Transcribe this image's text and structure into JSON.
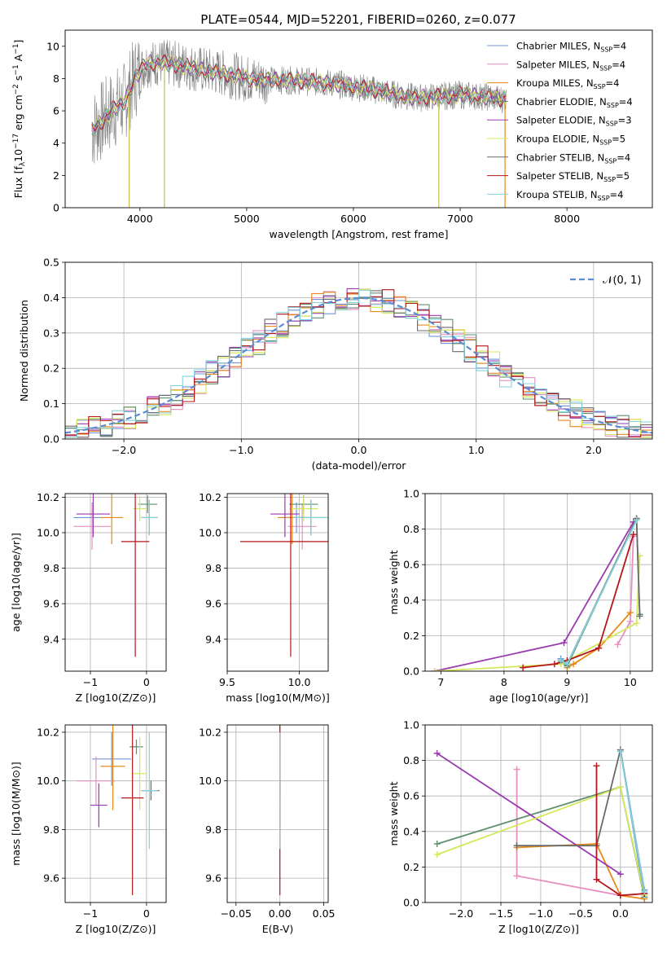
{
  "title": "PLATE=0544, MJD=52201, FIBERID=0260, z=0.077",
  "colors": {
    "series": [
      "#6f95d6",
      "#e68fc1",
      "#e8891a",
      "#5e8f6d",
      "#9a3ab0",
      "#d4e85a",
      "#6b6b6b",
      "#b5161a",
      "#82d2dd"
    ],
    "data": "#7f7f7f",
    "normal": "#5b8bd3",
    "grid": "#b0b0b0"
  },
  "legend_labels": [
    {
      "base": "Chabrier MILES, N",
      "sub": "SSP",
      "tail": "=4"
    },
    {
      "base": "Salpeter MILES, N",
      "sub": "SSP",
      "tail": "=4"
    },
    {
      "base": "Kroupa MILES, N",
      "sub": "SSP",
      "tail": "=4"
    },
    {
      "base": "Chabrier ELODIE, N",
      "sub": "SSP",
      "tail": "=4"
    },
    {
      "base": "Salpeter ELODIE, N",
      "sub": "SSP",
      "tail": "=3"
    },
    {
      "base": "Kroupa ELODIE, N",
      "sub": "SSP",
      "tail": "=5"
    },
    {
      "base": "Chabrier STELIB, N",
      "sub": "SSP",
      "tail": "=4"
    },
    {
      "base": "Salpeter STELIB, N",
      "sub": "SSP",
      "tail": "=5"
    },
    {
      "base": "Kroupa STELIB, N",
      "sub": "SSP",
      "tail": "=4"
    }
  ],
  "normal_label": "𝒩(0, 1)",
  "chart_data": [
    {
      "id": "spectrum",
      "type": "line",
      "xlabel": "wavelength [Angstrom, rest frame]",
      "ylabel": "Flux [f_λ 10^-17 erg cm^-2 s^-1 A^-1]",
      "xlim": [
        3300,
        8800
      ],
      "ylim": [
        0,
        11
      ],
      "grid": false,
      "legend": "top-right",
      "xticks": [
        4000,
        5000,
        6000,
        7000,
        8000
      ],
      "yticks": [
        0,
        2,
        4,
        6,
        8,
        10
      ],
      "data_range": [
        3550,
        7430
      ],
      "continuum_points": [
        [
          3550,
          4.8
        ],
        [
          3650,
          5.4
        ],
        [
          3750,
          6.1
        ],
        [
          3850,
          6.5
        ],
        [
          3950,
          8.0
        ],
        [
          4050,
          8.9
        ],
        [
          4200,
          9.0
        ],
        [
          4400,
          8.8
        ],
        [
          4600,
          8.5
        ],
        [
          4800,
          8.3
        ],
        [
          5000,
          8.0
        ],
        [
          5200,
          7.9
        ],
        [
          5400,
          7.9
        ],
        [
          5600,
          7.8
        ],
        [
          5800,
          7.7
        ],
        [
          6000,
          7.5
        ],
        [
          6200,
          7.3
        ],
        [
          6400,
          7.0
        ],
        [
          6600,
          6.8
        ],
        [
          6800,
          6.9
        ],
        [
          7000,
          7.0
        ],
        [
          7200,
          6.9
        ],
        [
          7430,
          6.7
        ]
      ]
    },
    {
      "id": "residuals",
      "type": "bar",
      "xlabel": "(data-model)/error",
      "ylabel": "Normed distribution",
      "xlim": [
        -2.5,
        2.5
      ],
      "ylim": [
        0,
        0.5
      ],
      "grid": true,
      "legend": "top-right",
      "xticks": [
        -2,
        -1,
        0,
        1,
        2
      ],
      "yticks": [
        0.0,
        0.1,
        0.2,
        0.3,
        0.4,
        0.5
      ],
      "bin_width": 0.1,
      "bin_start": -2.5,
      "spread": [
        0.0,
        0.02,
        -0.015,
        0.03,
        -0.01,
        0.025,
        -0.03,
        0.015,
        -0.02
      ]
    },
    {
      "id": "age_vs_Z",
      "type": "scatter",
      "xlabel": "Z [log10(Z/Z⊙)]",
      "ylabel": "age [log10(age/yr)]",
      "xlim": [
        -1.45,
        0.35
      ],
      "ylim": [
        9.22,
        10.22
      ],
      "grid": true,
      "xticks": [
        -1,
        0
      ],
      "yticks": [
        9.4,
        9.6,
        9.8,
        10.0,
        10.2
      ],
      "points": [
        {
          "x": -0.97,
          "xerr": 0.33,
          "y": 10.085,
          "yerr": 0.085
        },
        {
          "x": -0.97,
          "xerr": 0.33,
          "y": 10.035,
          "yerr": 0.13
        },
        {
          "x": -0.62,
          "xerr": 0.2,
          "y": 10.085,
          "yerr": 0.15
        },
        {
          "x": 0.02,
          "xerr": 0.17,
          "y": 10.16,
          "yerr": 0.05
        },
        {
          "x": -0.95,
          "xerr": 0.3,
          "y": 10.105,
          "yerr": 0.13
        },
        {
          "x": -0.12,
          "xerr": 0.12,
          "y": 10.135,
          "yerr": 0.07
        },
        {
          "x": 0.05,
          "xerr": 0.15,
          "y": 10.085,
          "yerr": 0.1
        },
        {
          "x": -0.2,
          "xerr": 0.25,
          "y": 9.95,
          "yerr": 0.65
        },
        {
          "x": 0.05,
          "xerr": 0.15,
          "y": 10.085,
          "yerr": 0.1
        }
      ]
    },
    {
      "id": "age_vs_mass",
      "type": "scatter",
      "xlabel": "mass [log10(M/M⊙)]",
      "ylabel": "",
      "xlim": [
        9.5,
        10.2
      ],
      "ylim": [
        9.22,
        10.22
      ],
      "grid": true,
      "xticks": [
        9.5,
        10.0
      ],
      "yticks": [
        9.4,
        9.6,
        9.8,
        10.0,
        10.2
      ],
      "points": [
        {
          "x": 9.98,
          "xerr": 0.1,
          "y": 10.085,
          "yerr": 0.085
        },
        {
          "x": 10.02,
          "xerr": 0.1,
          "y": 10.035,
          "yerr": 0.13
        },
        {
          "x": 9.95,
          "xerr": 0.1,
          "y": 10.085,
          "yerr": 0.15
        },
        {
          "x": 10.03,
          "xerr": 0.1,
          "y": 10.16,
          "yerr": 0.05
        },
        {
          "x": 9.9,
          "xerr": 0.1,
          "y": 10.105,
          "yerr": 0.13
        },
        {
          "x": 10.03,
          "xerr": 0.1,
          "y": 10.135,
          "yerr": 0.07
        },
        {
          "x": 10.08,
          "xerr": 0.12,
          "y": 10.085,
          "yerr": 0.1
        },
        {
          "x": 9.94,
          "xerr": 0.35,
          "y": 9.95,
          "yerr": 0.65
        },
        {
          "x": 10.08,
          "xerr": 0.12,
          "y": 10.085,
          "yerr": 0.1
        }
      ]
    },
    {
      "id": "weight_vs_age",
      "type": "line",
      "xlabel": "age [log10(age/yr)]",
      "ylabel": "mass weight",
      "xlim": [
        6.75,
        10.35
      ],
      "ylim": [
        0,
        1
      ],
      "grid": true,
      "xticks": [
        7,
        8,
        9,
        10
      ],
      "yticks": [
        0.0,
        0.2,
        0.4,
        0.6,
        0.8,
        1.0
      ],
      "series": [
        {
          "x": [
            8.9,
            9.0,
            10.1
          ],
          "y": [
            0.07,
            0.03,
            0.86
          ]
        },
        {
          "x": [
            9.8,
            10.0,
            10.05
          ],
          "y": [
            0.15,
            0.28,
            0.76
          ]
        },
        {
          "x": [
            9.0,
            9.1,
            9.5,
            10.0
          ],
          "y": [
            0.02,
            0.04,
            0.13,
            0.33
          ]
        },
        {
          "x": [
            8.9,
            9.0,
            10.1,
            10.15
          ],
          "y": [
            0.05,
            0.03,
            0.86,
            0.32
          ]
        },
        {
          "x": [
            6.9,
            8.95,
            10.05
          ],
          "y": [
            0.0,
            0.16,
            0.84
          ]
        },
        {
          "x": [
            6.9,
            8.9,
            10.1,
            10.15
          ],
          "y": [
            0.0,
            0.04,
            0.27,
            0.65
          ]
        },
        {
          "x": [
            8.9,
            9.0,
            10.1,
            10.15
          ],
          "y": [
            0.06,
            0.04,
            0.86,
            0.31
          ]
        },
        {
          "x": [
            8.3,
            8.8,
            9.0,
            9.5,
            10.05
          ],
          "y": [
            0.02,
            0.04,
            0.06,
            0.13,
            0.77
          ]
        },
        {
          "x": [
            8.9,
            9.0,
            10.1
          ],
          "y": [
            0.06,
            0.04,
            0.85
          ]
        }
      ]
    },
    {
      "id": "mass_vs_Z",
      "type": "scatter",
      "xlabel": "Z [log10(Z/Z⊙)]",
      "ylabel": "mass [log10(M/M⊙)]",
      "xlim": [
        -1.45,
        0.35
      ],
      "ylim": [
        9.5,
        10.23
      ],
      "grid": true,
      "xticks": [
        -1,
        0
      ],
      "yticks": [
        9.6,
        9.8,
        10.0,
        10.2
      ],
      "points": [
        {
          "x": -0.62,
          "xerr": 0.35,
          "y": 10.09,
          "yerr": 0.11
        },
        {
          "x": -0.9,
          "xerr": 0.35,
          "y": 10.0,
          "yerr": 0.1
        },
        {
          "x": -0.6,
          "xerr": 0.22,
          "y": 10.06,
          "yerr": 0.18
        },
        {
          "x": -0.18,
          "xerr": 0.12,
          "y": 10.14,
          "yerr": 0.03
        },
        {
          "x": -0.85,
          "xerr": 0.15,
          "y": 9.9,
          "yerr": 0.09
        },
        {
          "x": -0.12,
          "xerr": 0.12,
          "y": 10.03,
          "yerr": 0.15
        },
        {
          "x": 0.08,
          "xerr": 0.15,
          "y": 9.96,
          "yerr": 0.04
        },
        {
          "x": -0.25,
          "xerr": 0.2,
          "y": 9.93,
          "yerr": 0.4
        },
        {
          "x": 0.05,
          "xerr": 0.15,
          "y": 9.96,
          "yerr": 0.24
        }
      ]
    },
    {
      "id": "mass_vs_EBV",
      "type": "scatter",
      "xlabel": "E(B-V)",
      "ylabel": "",
      "xlim": [
        -0.06,
        0.055
      ],
      "ylim": [
        9.5,
        10.23
      ],
      "grid": true,
      "xticks": [
        -0.05,
        0.0,
        0.05
      ],
      "yticks": [
        9.6,
        9.8,
        10.0,
        10.2
      ],
      "points": [
        {
          "x": 0.0,
          "xerr": 0.0,
          "y": 10.09,
          "yerr": 0.11
        },
        {
          "x": 0.0,
          "xerr": 0.0,
          "y": 10.0,
          "yerr": 0.1
        },
        {
          "x": 0.0,
          "xerr": 0.0,
          "y": 10.06,
          "yerr": 0.18
        },
        {
          "x": 0.0,
          "xerr": 0.0,
          "y": 10.14,
          "yerr": 0.03
        },
        {
          "x": 0.0,
          "xerr": 0.0,
          "y": 9.9,
          "yerr": 0.09
        },
        {
          "x": 0.0,
          "xerr": 0.0,
          "y": 10.03,
          "yerr": 0.15
        },
        {
          "x": 0.0,
          "xerr": 0.0,
          "y": 9.96,
          "yerr": 0.04
        },
        {
          "x": 0.0,
          "xerr": 0.0,
          "y": 9.93,
          "yerr": 0.4
        },
        {
          "x": 0.0,
          "xerr": 0.0,
          "y": 9.96,
          "yerr": 0.24
        }
      ]
    },
    {
      "id": "weight_vs_Z",
      "type": "line",
      "xlabel": "Z [log10(Z/Z⊙)]",
      "ylabel": "mass weight",
      "xlim": [
        -2.45,
        0.4
      ],
      "ylim": [
        0,
        1
      ],
      "grid": true,
      "xticks": [
        -2.0,
        -1.5,
        -1.0,
        -0.5,
        0.0
      ],
      "yticks": [
        0.0,
        0.2,
        0.4,
        0.6,
        0.8,
        1.0
      ],
      "series": [
        {
          "x": [
            0.3,
            0.0,
            0.3
          ],
          "y": [
            0.07,
            0.86,
            0.03
          ]
        },
        {
          "x": [
            -1.3,
            -1.3,
            0.0,
            0.3
          ],
          "y": [
            0.75,
            0.15,
            0.04,
            0.05
          ]
        },
        {
          "x": [
            -1.3,
            -0.3,
            0.0,
            0.3
          ],
          "y": [
            0.31,
            0.33,
            0.04,
            0.02
          ]
        },
        {
          "x": [
            -2.3,
            0.0,
            0.3
          ],
          "y": [
            0.33,
            0.65,
            0.03
          ]
        },
        {
          "x": [
            -2.3,
            0.0
          ],
          "y": [
            0.84,
            0.16
          ]
        },
        {
          "x": [
            -2.3,
            0.0,
            0.3
          ],
          "y": [
            0.27,
            0.65,
            0.04
          ]
        },
        {
          "x": [
            -1.3,
            -0.3,
            0.0,
            0.3
          ],
          "y": [
            0.32,
            0.32,
            0.86,
            0.05
          ]
        },
        {
          "x": [
            -0.3,
            -0.3,
            0.0,
            0.3
          ],
          "y": [
            0.77,
            0.13,
            0.04,
            0.05
          ]
        },
        {
          "x": [
            0.0,
            0.3
          ],
          "y": [
            0.85,
            0.06
          ]
        }
      ]
    }
  ]
}
